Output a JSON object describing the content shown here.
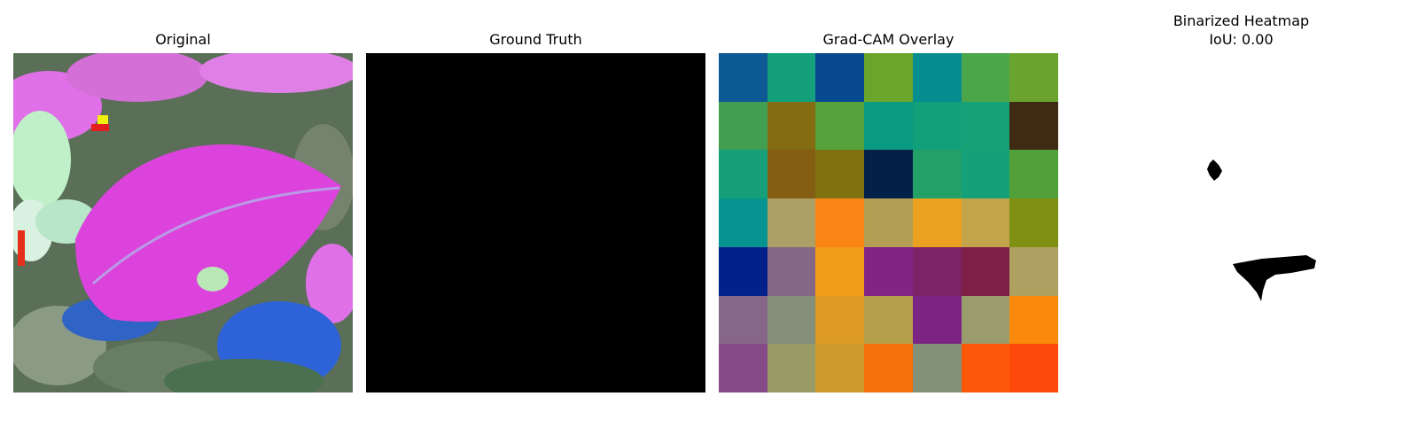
{
  "panels": {
    "original": {
      "title": "Original"
    },
    "ground_truth": {
      "title": "Ground Truth"
    },
    "gradcam": {
      "title": "Grad-CAM Overlay",
      "grid": [
        [
          "#0c5994",
          "#15a07c",
          "#074a8f",
          "#6aa629",
          "#068d90",
          "#4ba549",
          "#6aa32e"
        ],
        [
          "#429f52",
          "#836c11",
          "#55a33a",
          "#0b9a82",
          "#12a07a",
          "#17a177",
          "#3f2a13"
        ],
        [
          "#169f78",
          "#845e12",
          "#80720f",
          "#032049",
          "#23a068",
          "#15a177",
          "#52a03a"
        ],
        [
          "#079390",
          "#aba065",
          "#fa8414",
          "#b39f54",
          "#eba020",
          "#c2a54b",
          "#7f9012"
        ],
        [
          "#03218a",
          "#836785",
          "#f09d17",
          "#812483",
          "#7c2266",
          "#7e2045",
          "#aea162"
        ],
        [
          "#876789",
          "#84907a",
          "#dd9b25",
          "#b59f4a",
          "#7c2483",
          "#9a9c6d",
          "#fb8a0c"
        ],
        [
          "#844b88",
          "#999b67",
          "#cf9a2e",
          "#f7700a",
          "#829276",
          "#fd5709",
          "#fd4a0a"
        ]
      ]
    },
    "binarized": {
      "title": "Binarized Heatmap",
      "iou_label": "IoU: 0.00"
    }
  }
}
